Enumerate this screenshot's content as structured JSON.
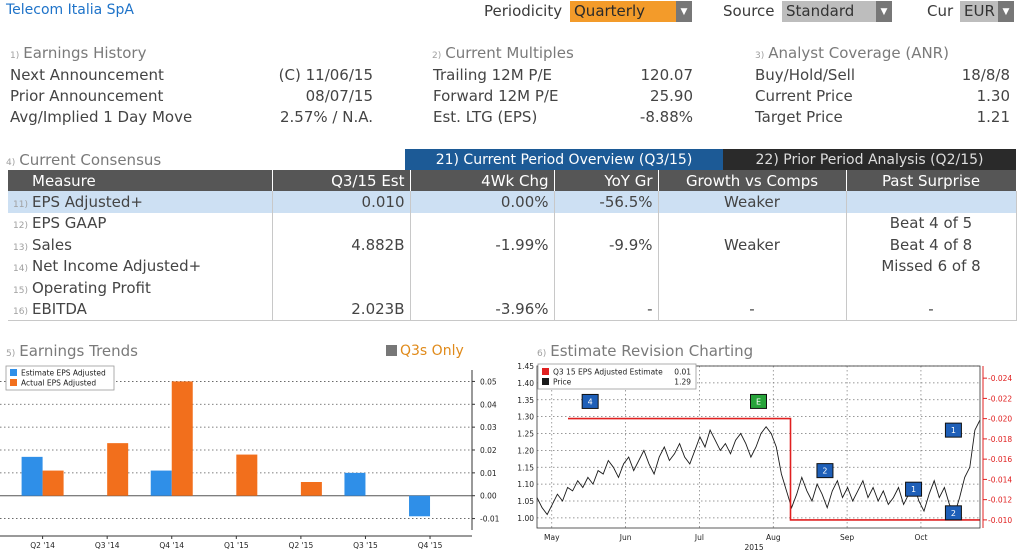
{
  "app": {
    "title": "Telecom Italia SpA"
  },
  "toolbar": {
    "periodicity_label": "Periodicity",
    "periodicity_value": "Quarterly",
    "source_label": "Source",
    "source_value": "Standard",
    "currency_label": "Cur",
    "currency_value": "EUR"
  },
  "earnings_history": {
    "num": "1)",
    "title": "Earnings History",
    "rows": [
      {
        "label": "Next Announcement",
        "value": "(C)  11/06/15"
      },
      {
        "label": "Prior Announcement",
        "value": "08/07/15"
      },
      {
        "label": "Avg/Implied 1 Day Move",
        "value": "2.57% / N.A."
      }
    ]
  },
  "current_multiples": {
    "num": "2)",
    "title": "Current Multiples",
    "rows": [
      {
        "label": "Trailing 12M P/E",
        "value": "120.07"
      },
      {
        "label": "Forward 12M P/E",
        "value": "25.90"
      },
      {
        "label": "Est. LTG (EPS)",
        "value": "-8.88%"
      }
    ]
  },
  "analyst_coverage": {
    "num": "3)",
    "title": "Analyst Coverage (ANR)",
    "rows": [
      {
        "label": "Buy/Hold/Sell",
        "value": "18/8/8"
      },
      {
        "label": "Current Price",
        "value": "1.30"
      },
      {
        "label": "Target Price",
        "value": "1.21"
      }
    ]
  },
  "consensus": {
    "num": "4)",
    "title": "Current Consensus",
    "tab_current": "21) Current Period Overview (Q3/15)",
    "tab_prior": "22) Prior Period Analysis (Q2/15)",
    "columns": [
      "Measure",
      "Q3/15 Est",
      "4Wk Chg",
      "YoY Gr",
      "Growth vs Comps",
      "Past Surprise"
    ],
    "rows": [
      {
        "num": "11)",
        "measure": "EPS Adjusted+",
        "est": "0.010",
        "chg": "0.00%",
        "yoy": "-56.5%",
        "growth": "Weaker",
        "surprise": ""
      },
      {
        "num": "12)",
        "measure": "EPS GAAP",
        "est": "",
        "chg": "",
        "yoy": "",
        "growth": "",
        "surprise": "Beat 4 of 5"
      },
      {
        "num": "13)",
        "measure": "Sales",
        "est": "4.882B",
        "chg": "-1.99%",
        "yoy": "-9.9%",
        "growth": "Weaker",
        "surprise": "Beat 4 of 8"
      },
      {
        "num": "14)",
        "measure": "Net Income Adjusted+",
        "est": "",
        "chg": "",
        "yoy": "",
        "growth": "",
        "surprise": "Missed 6 of 8"
      },
      {
        "num": "15)",
        "measure": "Operating Profit",
        "est": "",
        "chg": "",
        "yoy": "",
        "growth": "",
        "surprise": ""
      },
      {
        "num": "16)",
        "measure": "EBITDA",
        "est": "2.023B",
        "chg": "-3.96%",
        "yoy": "-",
        "growth": "-",
        "surprise": "-"
      }
    ]
  },
  "earnings_trends": {
    "num": "5)",
    "title": "Earnings Trends",
    "q3_toggle": "Q3s Only",
    "colors": {
      "estimate": "#2f8fe8",
      "actual": "#f26f1c"
    }
  },
  "revision": {
    "num": "6)",
    "title": "Estimate Revision Charting",
    "colors": {
      "estimate": "#e02020",
      "price": "#1a1a1a"
    }
  },
  "chart_data": [
    {
      "type": "bar",
      "categories": [
        "Q2 '14",
        "Q3 '14",
        "Q4 '14",
        "Q1 '15",
        "Q2 '15",
        "Q3 '15",
        "Q4 '15"
      ],
      "series": [
        {
          "name": "Estimate EPS Adjusted",
          "values": [
            0.017,
            null,
            0.011,
            null,
            null,
            0.01,
            -0.009
          ]
        },
        {
          "name": "Actual EPS Adjusted",
          "values": [
            0.011,
            0.023,
            0.05,
            0.018,
            0.006,
            null,
            null
          ]
        }
      ],
      "ylim": [
        -0.015,
        0.055
      ],
      "yticks": [
        0.05,
        0.04,
        0.03,
        0.02,
        0.01,
        0.0,
        -0.01
      ],
      "ytick_labels": [
        "0.05",
        "0.04",
        "0.03",
        "0.02",
        "0.01",
        "0.00",
        "-0.01"
      ],
      "legend": "top-left",
      "grid": true
    },
    {
      "type": "line",
      "x_labels": [
        "May",
        "Jun",
        "Jul",
        "Aug",
        "Sep",
        "Oct"
      ],
      "x_sub_label": "2015",
      "series": [
        {
          "name": "Q3 15 EPS Adjusted Estimate",
          "last_value": "0.01",
          "axis": "right",
          "x": [
            0,
            0.54,
            0.54,
            1.0
          ],
          "values": [
            0.02,
            0.02,
            0.01,
            0.01
          ]
        },
        {
          "name": "Price",
          "last_value": "1.29",
          "axis": "left",
          "values": [
            1.06,
            1.03,
            1.01,
            1.04,
            1.07,
            1.05,
            1.09,
            1.08,
            1.11,
            1.09,
            1.12,
            1.1,
            1.14,
            1.13,
            1.17,
            1.15,
            1.12,
            1.16,
            1.18,
            1.14,
            1.17,
            1.2,
            1.16,
            1.13,
            1.18,
            1.21,
            1.17,
            1.19,
            1.22,
            1.18,
            1.16,
            1.2,
            1.24,
            1.21,
            1.26,
            1.23,
            1.2,
            1.22,
            1.19,
            1.23,
            1.25,
            1.22,
            1.18,
            1.21,
            1.25,
            1.27,
            1.25,
            1.21,
            1.13,
            1.08,
            1.03,
            1.07,
            1.12,
            1.08,
            1.05,
            1.1,
            1.07,
            1.03,
            1.08,
            1.11,
            1.06,
            1.09,
            1.05,
            1.08,
            1.11,
            1.06,
            1.09,
            1.05,
            1.08,
            1.04,
            1.06,
            1.09,
            1.04,
            1.07,
            1.1,
            1.05,
            1.02,
            1.07,
            1.11,
            1.06,
            1.09,
            1.04,
            1.01,
            1.06,
            1.12,
            1.15,
            1.26,
            1.29
          ]
        }
      ],
      "y_left": {
        "ylim": [
          0.97,
          1.45
        ],
        "ticks": [
          "1.45",
          "1.40",
          "1.35",
          "1.30",
          "1.25",
          "1.20",
          "1.15",
          "1.10",
          "1.05",
          "1.00"
        ]
      },
      "y_right": {
        "ylim": [
          0.0092,
          0.0252
        ],
        "ticks": [
          "0.024",
          "0.022",
          "0.020",
          "0.018",
          "0.016",
          "0.014",
          "0.012",
          "0.010"
        ]
      },
      "markers": [
        {
          "label": "4",
          "color": "blue",
          "x": 0.12,
          "y": 1.345
        },
        {
          "label": "E",
          "color": "green",
          "x": 0.5,
          "y": 1.345
        },
        {
          "label": "2",
          "color": "blue",
          "x": 0.65,
          "y": 1.14
        },
        {
          "label": "1",
          "color": "blue",
          "x": 0.85,
          "y": 1.085
        },
        {
          "label": "1",
          "color": "blue",
          "x": 0.94,
          "y": 1.26
        },
        {
          "label": "2",
          "color": "blue",
          "x": 0.94,
          "y": 1.015
        }
      ],
      "legend": "top-left"
    }
  ]
}
